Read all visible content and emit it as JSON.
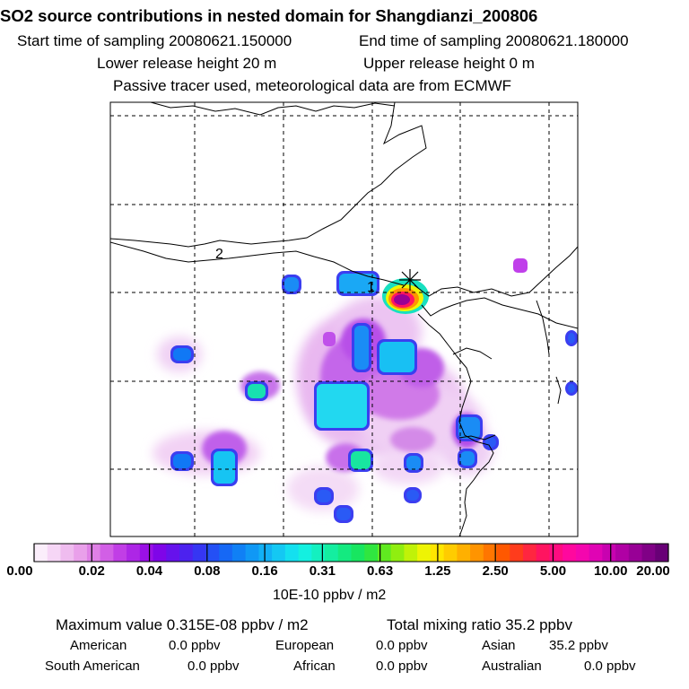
{
  "header": {
    "title": "SO2 source contributions in nested domain for Shangdianzi_200806",
    "start_label": "Start time of sampling 20080621.150000",
    "end_label": "End time of sampling 20080621.180000",
    "lower_label": "Lower release height   20 m",
    "upper_label": "Upper release height    0 m",
    "tracer_label": "Passive tracer used, meteorological data are from ECMWF"
  },
  "chart_data": {
    "type": "heatmap",
    "title": "SO2 source contributions in nested domain for Shangdianzi_200806",
    "units": "10E-10 ppbv / m2",
    "station": "Shangdianzi",
    "contour_labels": [
      "1",
      "2"
    ],
    "color_scale": {
      "tick_labels": [
        "0.00",
        "0.02",
        "0.04",
        "0.08",
        "0.16",
        "0.31",
        "0.63",
        "1.25",
        "2.50",
        "5.00",
        "10.00",
        "20.00"
      ],
      "colors": [
        "#fbeefb",
        "#f6d6f6",
        "#efbcef",
        "#e9a0ea",
        "#df80e6",
        "#d25fe6",
        "#c13ee6",
        "#ad26e6",
        "#9a10e6",
        "#7f05e8",
        "#6612ec",
        "#4c22ef",
        "#3636f3",
        "#2450f5",
        "#1668f5",
        "#1080f5",
        "#1098f5",
        "#12b0f5",
        "#14c8f3",
        "#14e0ef",
        "#14f0e0",
        "#14f0c0",
        "#14eea0",
        "#14ea80",
        "#18e660",
        "#30e640",
        "#60ea20",
        "#90ee10",
        "#c0f208",
        "#eef404",
        "#ffe600",
        "#ffcc00",
        "#ffb000",
        "#ff9400",
        "#ff7600",
        "#ff5800",
        "#ff3c1c",
        "#ff2640",
        "#ff1460",
        "#ff0c80",
        "#ff089e",
        "#f406ae",
        "#e004b4",
        "#c802b0",
        "#b000a4",
        "#980096",
        "#800086",
        "#680076"
      ]
    }
  },
  "stats": {
    "max_label": "Maximum value  0.315E-08 ppbv / m2",
    "total_label": "Total mixing ratio      35.2 ppbv",
    "regions": [
      {
        "name": "American",
        "value": "0.0 ppbv"
      },
      {
        "name": "European",
        "value": "0.0 ppbv"
      },
      {
        "name": "Asian",
        "value": "35.2 ppbv"
      },
      {
        "name": "South American",
        "value": "0.0 ppbv"
      },
      {
        "name": "African",
        "value": "0.0 ppbv"
      },
      {
        "name": "Australian",
        "value": "0.0 ppbv"
      }
    ]
  }
}
